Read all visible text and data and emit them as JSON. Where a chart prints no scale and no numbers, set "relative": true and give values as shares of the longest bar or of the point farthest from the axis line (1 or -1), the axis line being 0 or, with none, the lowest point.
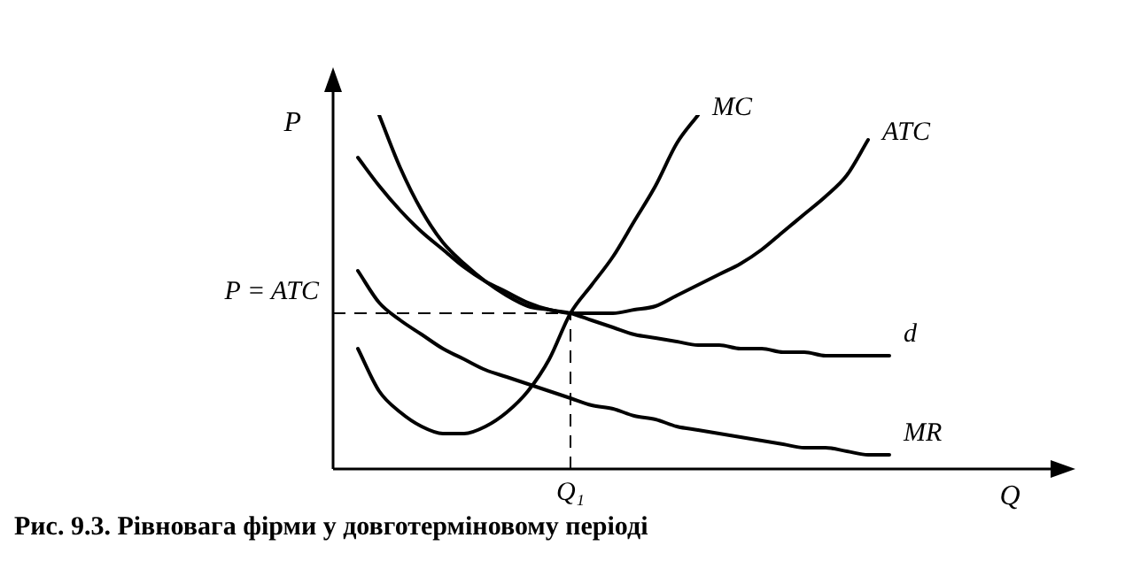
{
  "chart_data": {
    "type": "line",
    "relative": true,
    "xlabel": "Q",
    "ylabel": "P",
    "marker": "none",
    "line_style": "solid",
    "tick_labels": false,
    "categories": [
      null,
      null,
      null,
      null,
      null,
      null,
      null,
      null,
      null,
      null,
      null,
      null,
      null,
      null,
      null,
      null,
      null,
      null,
      null,
      null,
      null,
      null,
      null,
      null,
      null,
      null
    ],
    "series": [
      {
        "name": "MC",
        "color": "#000000",
        "values": [
          0.34,
          0.22,
          0.16,
          0.12,
          0.1,
          0.1,
          0.12,
          0.16,
          0.22,
          0.31,
          0.44,
          0.52,
          0.6,
          0.7,
          0.8,
          0.92,
          1.0,
          null,
          null,
          null,
          null,
          null,
          null,
          null,
          null,
          null
        ]
      },
      {
        "name": "ATC",
        "color": "#000000",
        "values": [
          null,
          1.0,
          0.85,
          0.73,
          0.64,
          0.58,
          0.53,
          0.49,
          0.46,
          0.45,
          0.44,
          0.44,
          0.44,
          0.45,
          0.46,
          0.49,
          0.52,
          0.55,
          0.58,
          0.62,
          0.67,
          0.72,
          0.77,
          0.83,
          0.93,
          null
        ]
      },
      {
        "name": "d",
        "color": "#000000",
        "values": [
          0.88,
          0.8,
          0.73,
          0.67,
          0.62,
          0.57,
          0.53,
          0.5,
          0.47,
          0.45,
          0.44,
          0.42,
          0.4,
          0.38,
          0.37,
          0.36,
          0.35,
          0.35,
          0.34,
          0.34,
          0.33,
          0.33,
          0.32,
          0.32,
          0.32,
          0.32
        ]
      },
      {
        "name": "MR",
        "color": "#000000",
        "values": [
          0.56,
          0.47,
          0.42,
          0.38,
          0.34,
          0.31,
          0.28,
          0.26,
          0.24,
          0.22,
          0.2,
          0.18,
          0.17,
          0.15,
          0.14,
          0.12,
          0.11,
          0.1,
          0.09,
          0.08,
          0.07,
          0.06,
          0.06,
          0.05,
          0.04,
          0.04
        ]
      }
    ],
    "ref_lines": [
      {
        "axis": "y",
        "value": 0.44,
        "label": "P = ATC",
        "line_style": "dashed"
      }
    ],
    "annotations": [
      "Q₁",
      "Рис. 9.3. Рівновага фірми у довготерміновому періоді"
    ]
  }
}
